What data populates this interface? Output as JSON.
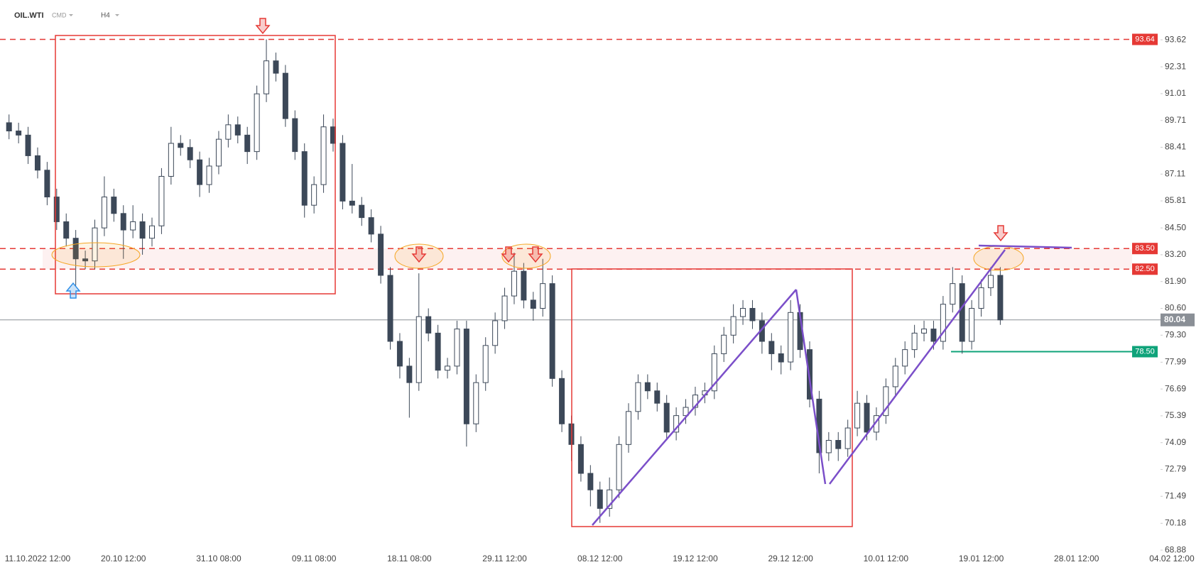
{
  "chart_data": {
    "type": "candlestick",
    "symbol": "OIL.WTI",
    "market": "CMD",
    "interval": "H4",
    "categories": [
      null,
      null,
      null,
      "11.10.2022 12:00",
      null,
      null,
      null,
      null,
      null,
      null,
      null,
      null,
      "20.10 12:00",
      null,
      null,
      null,
      null,
      null,
      null,
      null,
      null,
      null,
      "31.10 08:00",
      null,
      null,
      null,
      null,
      null,
      null,
      null,
      null,
      null,
      "09.11 08:00",
      null,
      null,
      null,
      null,
      null,
      null,
      null,
      null,
      null,
      "18.11 08:00",
      null,
      null,
      null,
      null,
      null,
      null,
      null,
      null,
      null,
      "29.11 12:00",
      null,
      null,
      null,
      null,
      null,
      null,
      null,
      null,
      null,
      "08.12 12:00",
      null,
      null,
      null,
      null,
      null,
      null,
      null,
      null,
      null,
      "19.12 12:00",
      null,
      null,
      null,
      null,
      null,
      null,
      null,
      null,
      null,
      "29.12 12:00",
      null,
      null,
      null,
      null,
      null,
      null,
      null,
      null,
      null,
      "10.01 12:00",
      null,
      null,
      null,
      null,
      null,
      null,
      null,
      null,
      null,
      "19.01 12:00",
      null,
      null,
      null,
      null,
      null,
      null,
      null,
      null,
      null,
      "28.01 12:00",
      null,
      null,
      null,
      null,
      null,
      null,
      null,
      null,
      null,
      "04.02 12:00"
    ],
    "open": [
      89.6,
      89.2,
      89.0,
      88.0,
      87.3,
      86.0,
      84.8,
      84.0,
      83.0,
      82.9,
      84.5,
      86.0,
      85.2,
      84.4,
      84.8,
      84.0,
      84.6,
      87.0,
      88.6,
      88.4,
      87.8,
      86.6,
      87.5,
      88.8,
      89.5,
      89.0,
      88.2,
      91.0,
      92.6,
      92.0,
      89.8,
      88.2,
      85.6,
      86.6,
      89.4,
      88.6,
      85.8,
      85.6,
      85.0,
      84.2,
      82.2,
      79.0,
      77.8,
      77.0,
      80.2,
      79.4,
      77.6,
      77.8,
      79.6,
      75.0,
      77.0,
      78.8,
      80.0,
      81.2,
      82.4,
      81.0,
      80.6,
      81.8,
      77.2,
      75.0,
      74.0,
      72.6,
      71.8,
      70.9,
      71.8,
      74.0,
      75.6,
      77.0,
      76.6,
      76.0,
      74.6,
      75.4,
      75.8,
      76.4,
      76.6,
      78.4,
      79.3,
      80.2,
      80.6,
      80.0,
      79.0,
      78.4,
      78.0,
      80.4,
      78.6,
      76.2,
      73.6,
      74.2,
      73.8,
      74.8,
      76.0,
      74.6,
      75.4,
      76.8,
      77.8,
      78.6,
      79.4,
      79.6,
      79.0,
      80.8,
      81.8,
      79.0,
      80.6,
      81.6,
      82.2,
      null,
      null,
      null,
      null,
      null,
      null,
      null,
      null,
      null,
      null,
      null,
      null,
      null,
      null,
      null,
      null,
      null,
      null
    ],
    "high": [
      90.0,
      89.6,
      89.4,
      88.4,
      87.7,
      86.4,
      85.2,
      84.4,
      83.4,
      84.9,
      87.0,
      86.4,
      85.6,
      85.6,
      85.2,
      85.0,
      87.4,
      89.4,
      89.0,
      88.8,
      88.2,
      87.9,
      89.2,
      90.0,
      89.9,
      89.4,
      91.4,
      93.64,
      93.0,
      92.4,
      90.2,
      88.6,
      87.0,
      90.0,
      89.8,
      89.0,
      87.6,
      86.0,
      85.4,
      84.6,
      82.6,
      79.4,
      78.2,
      82.3,
      80.6,
      79.8,
      78.2,
      80.0,
      80.0,
      77.4,
      79.2,
      80.4,
      81.6,
      83.3,
      82.8,
      81.4,
      83.0,
      82.2,
      77.6,
      75.4,
      74.4,
      73.0,
      72.2,
      72.4,
      74.4,
      76.0,
      77.4,
      77.4,
      77.0,
      76.4,
      75.8,
      76.2,
      76.8,
      77.0,
      78.8,
      79.7,
      80.8,
      81.0,
      81.0,
      80.4,
      79.4,
      78.8,
      81.0,
      80.8,
      79.0,
      76.6,
      74.6,
      74.6,
      75.2,
      76.6,
      76.4,
      75.8,
      77.2,
      78.2,
      79.0,
      79.8,
      80.0,
      80.0,
      81.2,
      82.6,
      82.2,
      81.0,
      82.0,
      82.6,
      82.6,
      null,
      null,
      null,
      null,
      null,
      null,
      null,
      null,
      null,
      null,
      null,
      null,
      null,
      null,
      null,
      null,
      null,
      null
    ],
    "low": [
      88.8,
      88.6,
      87.6,
      86.9,
      85.6,
      84.4,
      83.6,
      81.7,
      82.5,
      82.5,
      84.1,
      84.8,
      83.0,
      84.0,
      83.2,
      83.6,
      84.2,
      86.6,
      88.0,
      87.4,
      86.0,
      86.2,
      87.1,
      88.4,
      88.6,
      87.6,
      87.8,
      90.6,
      91.6,
      89.4,
      87.8,
      85.0,
      85.2,
      86.2,
      88.2,
      85.4,
      85.2,
      84.6,
      83.8,
      81.8,
      78.6,
      77.2,
      75.3,
      76.6,
      79.0,
      77.2,
      77.2,
      77.4,
      73.9,
      74.6,
      76.6,
      78.4,
      79.6,
      80.8,
      80.6,
      80.0,
      80.2,
      76.8,
      74.6,
      73.2,
      72.2,
      71.0,
      70.2,
      70.5,
      71.4,
      73.6,
      75.2,
      76.2,
      75.6,
      74.2,
      74.2,
      75.0,
      75.4,
      76.0,
      76.2,
      78.0,
      78.9,
      79.8,
      79.6,
      78.4,
      77.6,
      77.4,
      77.6,
      78.2,
      75.8,
      72.6,
      73.2,
      73.2,
      73.4,
      74.4,
      74.2,
      74.2,
      75.0,
      76.4,
      77.4,
      78.2,
      79.0,
      78.6,
      78.6,
      80.4,
      78.4,
      78.6,
      80.2,
      81.2,
      79.8,
      null,
      null,
      null,
      null,
      null,
      null,
      null,
      null,
      null,
      null,
      null,
      null,
      null,
      null,
      null,
      null,
      null,
      null
    ],
    "close": [
      89.2,
      89.0,
      88.0,
      87.3,
      86.0,
      84.8,
      84.0,
      83.0,
      82.9,
      84.5,
      86.0,
      85.2,
      84.4,
      84.8,
      84.0,
      84.6,
      87.0,
      88.6,
      88.4,
      87.8,
      86.6,
      87.5,
      88.8,
      89.5,
      89.0,
      88.2,
      91.0,
      92.6,
      92.0,
      89.8,
      88.2,
      85.6,
      86.6,
      89.4,
      88.6,
      85.8,
      85.6,
      85.0,
      84.2,
      82.2,
      79.0,
      77.8,
      77.0,
      80.2,
      79.4,
      77.6,
      77.8,
      79.6,
      75.0,
      77.0,
      78.8,
      80.0,
      81.2,
      82.4,
      81.0,
      80.6,
      81.8,
      77.2,
      75.0,
      74.0,
      72.6,
      71.8,
      70.9,
      71.8,
      74.0,
      75.6,
      77.0,
      76.6,
      76.0,
      74.6,
      75.4,
      75.8,
      76.4,
      76.6,
      78.4,
      79.3,
      80.2,
      80.6,
      80.0,
      79.0,
      78.4,
      78.0,
      80.4,
      78.6,
      76.2,
      73.6,
      74.2,
      73.8,
      74.8,
      76.0,
      74.6,
      75.4,
      76.8,
      77.8,
      78.6,
      79.4,
      79.6,
      79.0,
      80.8,
      81.8,
      79.0,
      80.6,
      81.6,
      82.2,
      80.04,
      null,
      null,
      null,
      null,
      null,
      null,
      null,
      null,
      null,
      null,
      null,
      null,
      null,
      null,
      null,
      null,
      null,
      null
    ],
    "up_color": "#ffffff",
    "down_color": "#3c4858",
    "wick_color": "#3c4858",
    "ylim": [
      68.54,
      95.55
    ],
    "yticks": [
      93.62,
      92.31,
      91.01,
      89.71,
      88.41,
      87.11,
      85.81,
      {
        "value": 84.5,
        "label": "84.50"
      },
      {
        "value": 83.2,
        "label": "83.20"
      },
      {
        "value": 81.9,
        "label": "81.90"
      },
      {
        "value": 80.6,
        "label": "80.60"
      },
      {
        "value": 79.3,
        "label": "79.30"
      },
      77.99,
      76.69,
      75.39,
      74.09,
      72.79,
      71.49,
      70.18,
      68.88
    ],
    "grid": false,
    "levels": [
      {
        "value": 93.64,
        "color": "#e53935",
        "style": "dashed"
      },
      {
        "value": 83.5,
        "label": "83.50",
        "color": "#e53935",
        "style": "dashed"
      },
      {
        "value": 82.5,
        "label": "82.50",
        "color": "#e53935",
        "style": "dashed"
      },
      {
        "value": 80.04,
        "color": "#8a8f96",
        "style": "current"
      },
      {
        "value": 78.5,
        "label": "78.50",
        "color": "#0fa37a",
        "style": "segment"
      }
    ]
  }
}
